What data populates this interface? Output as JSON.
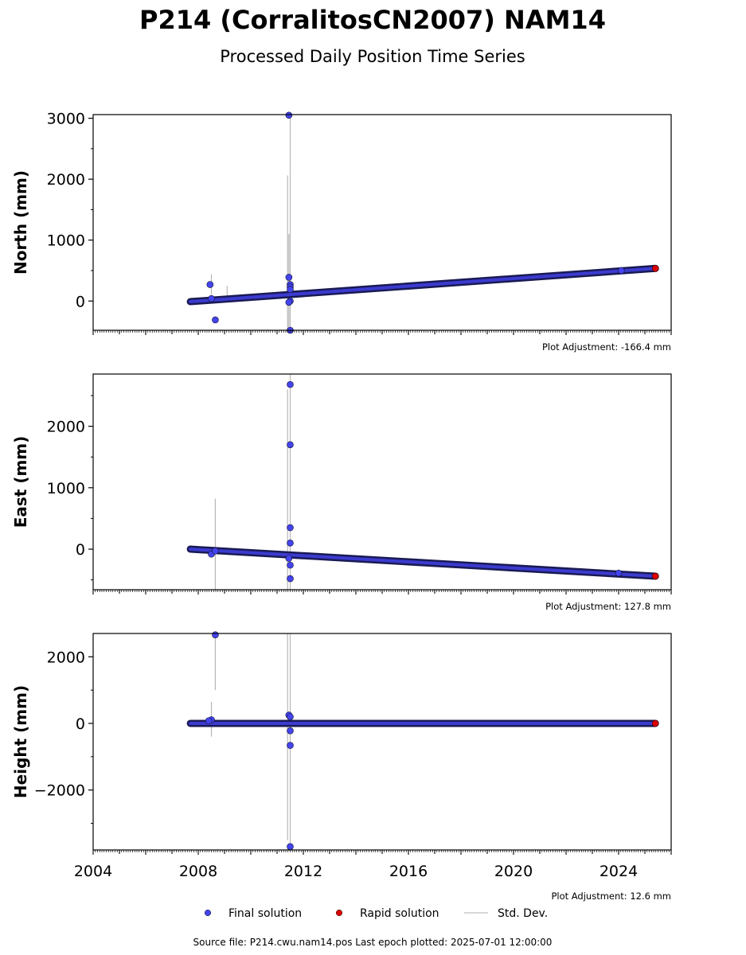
{
  "title": "P214 (CorralitosCN2007) NAM14",
  "subtitle": "Processed Daily Position Time Series",
  "footer": "Source file: P214.cwu.nam14.pos  Last epoch plotted: 2025-07-01 12:00:00",
  "legend": {
    "placement": "bottom-center",
    "items": [
      {
        "label": "Final solution",
        "color": "#4444ee",
        "kind": "dot"
      },
      {
        "label": "Rapid solution",
        "color": "#dd0000",
        "kind": "dot"
      },
      {
        "label": "Std. Dev.",
        "color": "#cccccc",
        "kind": "line"
      }
    ]
  },
  "chart_data": [
    {
      "type": "scatter",
      "ylabel": "North (mm)",
      "adjustment": "Plot Adjustment: -166.4 mm",
      "xlim": [
        2004,
        2026
      ],
      "ylim": [
        -480,
        3060
      ],
      "yticks": [
        0,
        1000,
        2000,
        3000
      ],
      "xticks": [
        2004,
        2008,
        2012,
        2016,
        2020,
        2024
      ],
      "show_xticklabels": false,
      "trend": {
        "start": [
          2007.7,
          -10
        ],
        "end": [
          2025.4,
          535
        ]
      },
      "outliers": [
        [
          2008.45,
          270
        ],
        [
          2008.65,
          -310
        ],
        [
          2008.5,
          40
        ],
        [
          2011.45,
          3050
        ],
        [
          2011.45,
          390
        ],
        [
          2011.5,
          270
        ],
        [
          2011.5,
          230
        ],
        [
          2011.5,
          190
        ],
        [
          2011.5,
          0
        ],
        [
          2011.45,
          -20
        ],
        [
          2011.5,
          -480
        ],
        [
          2024.1,
          500
        ]
      ],
      "std_dev": [
        [
          2008.5,
          100,
          440
        ],
        [
          2009.1,
          10,
          250
        ],
        [
          2011.4,
          -480,
          2060
        ],
        [
          2011.45,
          -480,
          1100
        ],
        [
          2011.5,
          -480,
          3060
        ]
      ],
      "rapid": [
        [
          2025.4,
          535
        ]
      ]
    },
    {
      "type": "scatter",
      "ylabel": "East (mm)",
      "adjustment": "Plot Adjustment: 127.8 mm",
      "xlim": [
        2004,
        2026
      ],
      "ylim": [
        -660,
        2850
      ],
      "yticks": [
        0,
        1000,
        2000
      ],
      "xticks": [
        2004,
        2008,
        2012,
        2016,
        2020,
        2024
      ],
      "show_xticklabels": false,
      "trend": {
        "start": [
          2007.7,
          0
        ],
        "end": [
          2025.4,
          -440
        ]
      },
      "outliers": [
        [
          2008.5,
          -80
        ],
        [
          2008.65,
          -30
        ],
        [
          2011.5,
          2680
        ],
        [
          2011.5,
          1700
        ],
        [
          2011.5,
          350
        ],
        [
          2011.5,
          100
        ],
        [
          2011.45,
          -150
        ],
        [
          2011.5,
          -260
        ],
        [
          2011.5,
          -480
        ],
        [
          2024.0,
          -390
        ]
      ],
      "std_dev": [
        [
          2008.65,
          -660,
          820
        ],
        [
          2011.4,
          -660,
          2600
        ],
        [
          2011.5,
          -660,
          2850
        ]
      ],
      "rapid": [
        [
          2025.4,
          -440
        ]
      ]
    },
    {
      "type": "scatter",
      "ylabel": "Height (mm)",
      "adjustment": "Plot Adjustment: 12.6 mm",
      "xlim": [
        2004,
        2026
      ],
      "ylim": [
        -3800,
        2700
      ],
      "yticks": [
        -2000,
        0,
        2000
      ],
      "xticks": [
        2004,
        2008,
        2012,
        2016,
        2020,
        2024
      ],
      "show_xticklabels": true,
      "trend": {
        "start": [
          2007.7,
          0
        ],
        "end": [
          2025.4,
          0
        ]
      },
      "outliers": [
        [
          2008.65,
          2660
        ],
        [
          2008.5,
          110
        ],
        [
          2008.4,
          80
        ],
        [
          2011.45,
          250
        ],
        [
          2011.5,
          200
        ],
        [
          2011.5,
          -220
        ],
        [
          2011.5,
          -660
        ],
        [
          2011.5,
          -3700
        ]
      ],
      "std_dev": [
        [
          2008.5,
          -400,
          650
        ],
        [
          2008.65,
          1000,
          2700
        ],
        [
          2011.4,
          -3500,
          2700
        ],
        [
          2011.5,
          -3800,
          2700
        ]
      ],
      "rapid": [
        [
          2025.4,
          0
        ]
      ]
    }
  ]
}
